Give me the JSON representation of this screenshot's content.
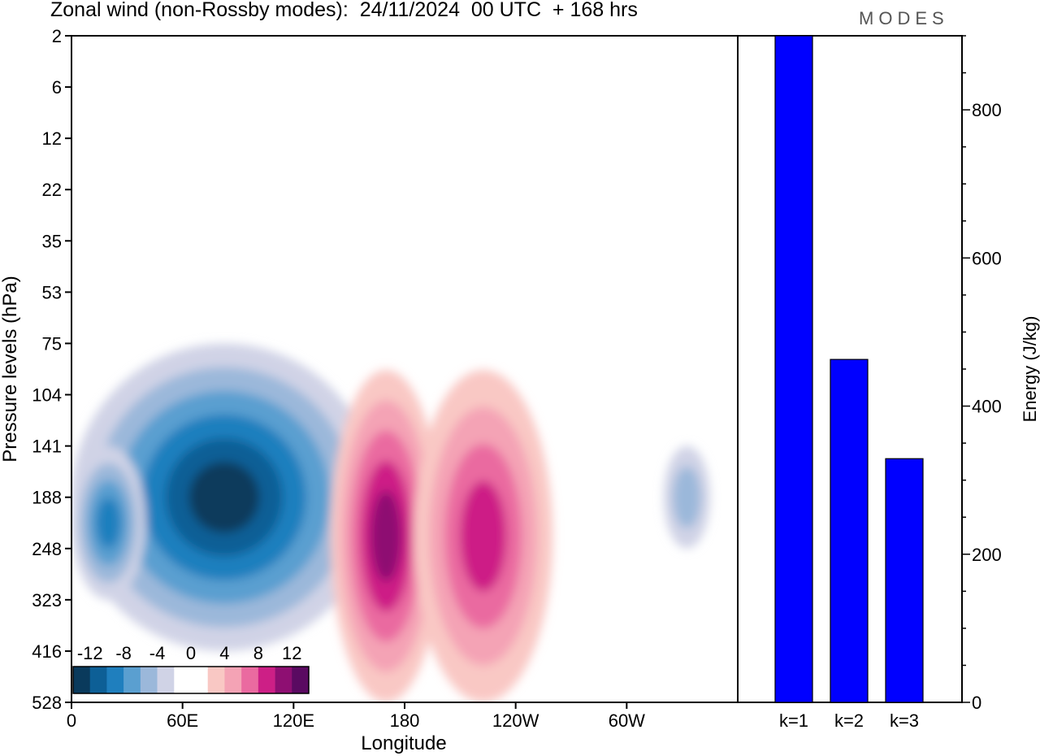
{
  "chart_data": {
    "title": "Zonal wind (non-Rossby modes):  24/11/2024  00 UTC  + 168 hrs",
    "logo": "MODES",
    "panels": [
      {
        "type": "heatmap",
        "xlabel": "Longitude",
        "ylabel": "Pressure levels (hPa)",
        "x_ticks": [
          "0",
          "60E",
          "120E",
          "180",
          "120W",
          "60W"
        ],
        "y_ticks": [
          "2",
          "6",
          "12",
          "22",
          "35",
          "53",
          "75",
          "104",
          "141",
          "188",
          "248",
          "323",
          "416",
          "528"
        ],
        "colorbar": {
          "labels": [
            "-12",
            "-8",
            "-4",
            "0",
            "4",
            "8",
            "12"
          ],
          "colors": [
            "#0a3a5c",
            "#0d5f96",
            "#1f7fbe",
            "#5a9fd0",
            "#9bb8da",
            "#d0d3e6",
            "#ffffff",
            "#ffffff",
            "#f9c8c4",
            "#f4a3b5",
            "#ea6aa0",
            "#cd1f86",
            "#8e0f72",
            "#5a0a61"
          ]
        },
        "features": [
          {
            "sign": "negative",
            "lon": [
              0,
              165
            ],
            "level": [
              75,
              416
            ],
            "peak": -14
          },
          {
            "sign": "negative",
            "lon": [
              0,
              40
            ],
            "level": [
              141,
              323
            ],
            "peak": -10
          },
          {
            "sign": "positive",
            "lon": [
              140,
              200
            ],
            "level": [
              90,
              528
            ],
            "peak": 12
          },
          {
            "sign": "positive",
            "lon": [
              185,
              260
            ],
            "level": [
              90,
              528
            ],
            "peak": 10
          },
          {
            "sign": "negative",
            "lon": [
              320,
              345
            ],
            "level": [
              141,
              248
            ],
            "peak": -6
          }
        ]
      },
      {
        "type": "bar",
        "categories": [
          "k=1",
          "k=2",
          "k=3"
        ],
        "values": [
          900,
          463,
          329
        ],
        "ylabel": "Energy (J/kg)",
        "ylim": [
          0,
          900
        ],
        "y_ticks": [
          0,
          200,
          400,
          600,
          800
        ],
        "bar_color": "#0000ff"
      }
    ]
  }
}
